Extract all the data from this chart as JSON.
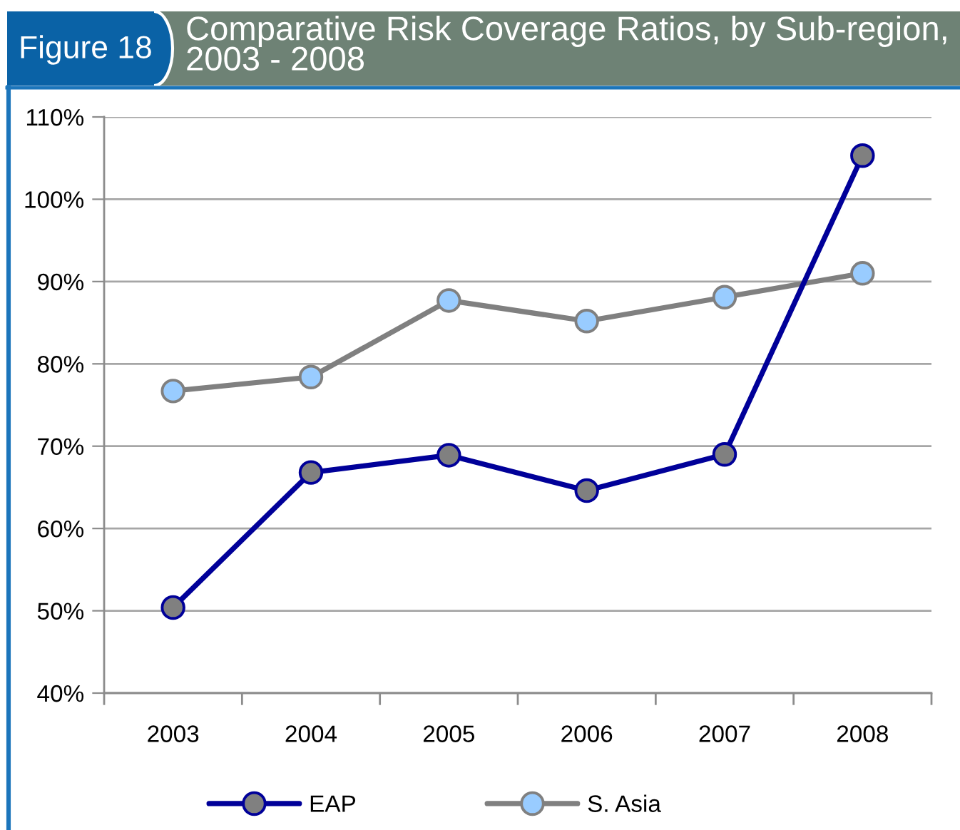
{
  "chart_data": {
    "type": "line",
    "title": "Comparative Risk Coverage Ratios, by Sub-region, 2003 - 2008",
    "annotations": [
      "Figure 18"
    ],
    "categories": [
      "2003",
      "2004",
      "2005",
      "2006",
      "2007",
      "2008"
    ],
    "series": [
      {
        "name": "EAP",
        "color": "#000099",
        "values": [
          50.4,
          66.8,
          68.9,
          64.6,
          69.0,
          105.3
        ]
      },
      {
        "name": "S. Asia",
        "color": "#808080",
        "values": [
          76.7,
          78.4,
          87.7,
          85.2,
          88.1,
          91.0
        ]
      }
    ],
    "ylim": [
      40,
      110
    ],
    "yticks": [
      {
        "value": 40,
        "label": "40%"
      },
      {
        "value": 50,
        "label": "50%"
      },
      {
        "value": 60,
        "label": "60%"
      },
      {
        "value": 70,
        "label": "70%"
      },
      {
        "value": 80,
        "label": "80%"
      },
      {
        "value": 90,
        "label": "90%"
      },
      {
        "value": 100,
        "label": "100%"
      },
      {
        "value": 110,
        "label": "110%"
      }
    ],
    "grid": "y",
    "legend": "bottom",
    "marker": "circle",
    "line_style": "solid"
  }
}
